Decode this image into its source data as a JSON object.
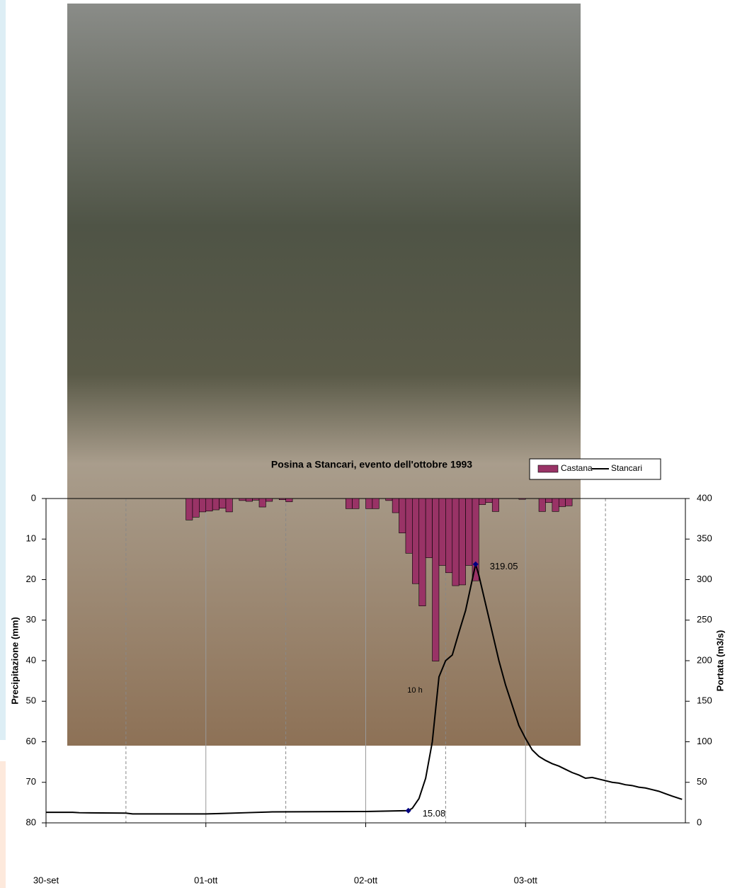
{
  "chart_data": {
    "type": "bar-line",
    "title": "Posina a Stancari, evento dell'ottobre 1993",
    "y_label": "Precipitazione (mm)",
    "y2_label": "Portata (m3/s)",
    "xlim": [
      0,
      96
    ],
    "xticks": [
      {
        "value": 0,
        "label": "30-set"
      },
      {
        "value": 24,
        "label": "01-ott"
      },
      {
        "value": 48,
        "label": "02-ott"
      },
      {
        "value": 72,
        "label": "03-ott"
      }
    ],
    "x_minor_ticks": [
      12,
      36,
      60,
      84
    ],
    "ylim": [
      0,
      80
    ],
    "y_inverted": true,
    "yticks": [
      0,
      10,
      20,
      30,
      40,
      50,
      60,
      70,
      80
    ],
    "y2lim": [
      0,
      400
    ],
    "y2ticks": [
      0,
      50,
      100,
      150,
      200,
      250,
      300,
      350,
      400
    ],
    "grid": true,
    "legend": "top-right",
    "annotations": [
      {
        "text": "10 h"
      }
    ],
    "series": [
      {
        "name": "Castana",
        "type": "bar",
        "color": "#993366",
        "axis": "y",
        "x": [
          21,
          22,
          23,
          24,
          25,
          26,
          27,
          29,
          30,
          31,
          32,
          33,
          35,
          36,
          45,
          46,
          48,
          49,
          51,
          52,
          53,
          54,
          55,
          56,
          57,
          58,
          59,
          60,
          61,
          62,
          63,
          64,
          65,
          66,
          67,
          71,
          74,
          75,
          76,
          77,
          78
        ],
        "values": [
          5.3,
          4.6,
          3.3,
          3.1,
          2.8,
          2.4,
          3.3,
          0.5,
          0.7,
          0.4,
          2.1,
          0.7,
          0.3,
          0.8,
          2.5,
          2.5,
          2.5,
          2.5,
          0.5,
          3.5,
          8.5,
          13.5,
          21,
          26.5,
          14.6,
          40.1,
          16.5,
          18.3,
          21.5,
          21.3,
          16.5,
          20.3,
          1.5,
          1,
          3.2,
          0.2,
          3.2,
          1,
          3.2,
          2,
          1.8
        ]
      },
      {
        "name": "Stancari",
        "type": "line",
        "color": "#000000",
        "axis": "y2",
        "x": [
          0,
          4,
          5,
          12,
          13,
          24,
          26,
          30,
          34,
          48,
          54.4,
          55,
          56,
          57,
          58,
          59,
          60,
          61,
          62,
          63,
          64,
          64.5,
          65,
          66,
          67,
          68,
          69,
          70,
          71,
          72,
          73,
          74,
          75,
          76,
          77,
          78,
          79,
          80,
          81,
          82,
          83,
          84,
          85,
          86,
          87,
          88,
          89,
          90,
          91,
          92,
          93,
          94,
          95.5
        ],
        "values": [
          13,
          13,
          12.5,
          12,
          11,
          11,
          11.5,
          12.5,
          13.5,
          14,
          15.08,
          18,
          30,
          55,
          100,
          180,
          200,
          207,
          235,
          262,
          300,
          319.05,
          305,
          270,
          235,
          200,
          170,
          145,
          120,
          104,
          90,
          82,
          77,
          73,
          70,
          66,
          62,
          59,
          55,
          56,
          54,
          52,
          50,
          49,
          47,
          46,
          44,
          43,
          41,
          39,
          36,
          33,
          29
        ],
        "marked": [
          10,
          21
        ]
      }
    ]
  }
}
